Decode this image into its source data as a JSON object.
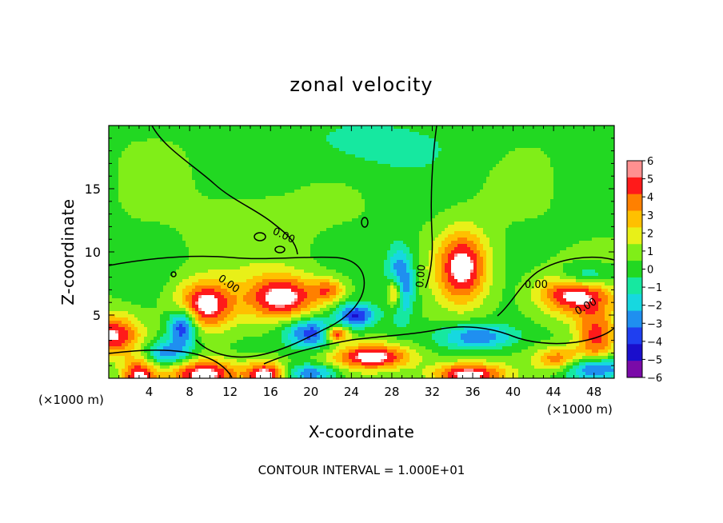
{
  "chart_data": {
    "type": "heatmap",
    "title": "zonal velocity",
    "xlabel": "X-coordinate",
    "ylabel": "Z-coordinate",
    "x_units_left": "(×1000 m)",
    "x_units_right": "(×1000 m)",
    "xlim": [
      0,
      50
    ],
    "ylim": [
      0,
      20
    ],
    "x_ticks": [
      "4",
      "8",
      "12",
      "16",
      "20",
      "24",
      "28",
      "32",
      "36",
      "40",
      "44",
      "48"
    ],
    "y_ticks": [
      "5",
      "10",
      "15"
    ],
    "colorbar": {
      "ticks": [
        "6",
        "5",
        "4",
        "3",
        "2",
        "1",
        "0",
        "−1",
        "−2",
        "−3",
        "−4",
        "−5",
        "−6"
      ],
      "range": [
        -6,
        6
      ],
      "colors": [
        "#7a0aa8",
        "#1a0ecc",
        "#1f3ff0",
        "#1f8ff0",
        "#16d8e0",
        "#16e8a0",
        "#22d822",
        "#80ee18",
        "#e8f018",
        "#ffc000",
        "#ff8000",
        "#ff1a1a",
        "#ff9090"
      ]
    },
    "contour_labels": [
      "0.00",
      "0.00",
      "0.00",
      "0.00",
      "0.00"
    ],
    "contour_interval_text": "CONTOUR INTERVAL = 1.000E+01",
    "background_value": 0.4,
    "features": [
      {
        "x": 0.3,
        "z": 3.4,
        "sx": 2.8,
        "sz": 1.6,
        "v": 5.5
      },
      {
        "x": 3.0,
        "z": 0.0,
        "sx": 1.6,
        "sz": 1.5,
        "v": 5.5
      },
      {
        "x": 9.5,
        "z": 5.8,
        "sx": 2.8,
        "sz": 1.9,
        "v": 6.0
      },
      {
        "x": 7.3,
        "z": 4.1,
        "sx": 1.4,
        "sz": 1.4,
        "v": -5.5
      },
      {
        "x": 5.8,
        "z": 2.0,
        "sx": 2.3,
        "sz": 1.0,
        "v": -4.0
      },
      {
        "x": 9.5,
        "z": 0.3,
        "sx": 3.5,
        "sz": 1.2,
        "v": 6.0
      },
      {
        "x": 15.5,
        "z": 0.3,
        "sx": 2.0,
        "sz": 1.0,
        "v": 6.0
      },
      {
        "x": 17.2,
        "z": 6.4,
        "sx": 3.6,
        "sz": 1.8,
        "v": 6.0
      },
      {
        "x": 21.8,
        "z": 7.0,
        "sx": 1.6,
        "sz": 0.9,
        "v": 3.5
      },
      {
        "x": 20.0,
        "z": 3.6,
        "sx": 2.6,
        "sz": 1.2,
        "v": -4.8
      },
      {
        "x": 22.5,
        "z": 3.5,
        "sx": 1.2,
        "sz": 0.6,
        "v": 6.0
      },
      {
        "x": 24.5,
        "z": 5.0,
        "sx": 1.8,
        "sz": 0.9,
        "v": -5.0
      },
      {
        "x": 26.2,
        "z": 1.7,
        "sx": 3.8,
        "sz": 1.0,
        "v": 6.0
      },
      {
        "x": 28.8,
        "z": 7.5,
        "sx": 1.3,
        "sz": 2.6,
        "v": -5.5
      },
      {
        "x": 28.3,
        "z": 6.8,
        "sx": 0.8,
        "sz": 1.3,
        "v": 6.0
      },
      {
        "x": 20.0,
        "z": 0.4,
        "sx": 2.5,
        "sz": 0.7,
        "v": -4.0
      },
      {
        "x": 35.0,
        "z": 8.8,
        "sx": 2.5,
        "sz": 2.8,
        "v": 6.0
      },
      {
        "x": 36.5,
        "z": 3.3,
        "sx": 3.8,
        "sz": 1.0,
        "v": -3.8
      },
      {
        "x": 35.5,
        "z": 0.3,
        "sx": 3.5,
        "sz": 0.9,
        "v": 6.0
      },
      {
        "x": 46.0,
        "z": 6.8,
        "sx": 3.5,
        "sz": 1.7,
        "v": 6.0
      },
      {
        "x": 47.0,
        "z": 8.0,
        "sx": 2.8,
        "sz": 1.0,
        "v": -4.2
      },
      {
        "x": 48.2,
        "z": 3.2,
        "sx": 2.0,
        "sz": 2.4,
        "v": 4.5
      },
      {
        "x": 48.0,
        "z": 0.8,
        "sx": 3.0,
        "sz": 0.9,
        "v": -5.0
      },
      {
        "x": 44.5,
        "z": 1.5,
        "sx": 2.2,
        "sz": 0.9,
        "v": 4.0
      },
      {
        "x": 26.0,
        "z": 18.5,
        "sx": 9.0,
        "sz": 2.5,
        "v": -1.3
      },
      {
        "x": 14.0,
        "z": 11.5,
        "sx": 5.0,
        "sz": 3.0,
        "v": 0.9
      }
    ]
  }
}
